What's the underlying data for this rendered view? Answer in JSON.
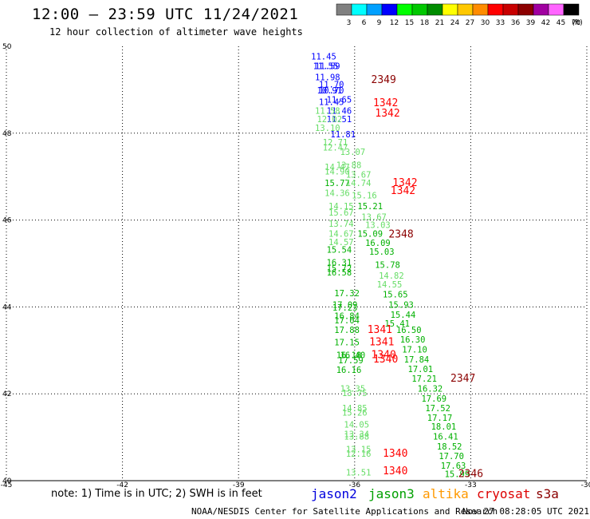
{
  "header": {
    "title": "12:00 – 23:59 UTC 11/24/2021",
    "subtitle": "12 hour collection of altimeter wave heights"
  },
  "legend": {
    "unit": "(ft)",
    "bins": [
      {
        "label": "3",
        "color": "#808080"
      },
      {
        "label": "6",
        "color": "#00ffff"
      },
      {
        "label": "9",
        "color": "#00a0ff"
      },
      {
        "label": "12",
        "color": "#0000ff"
      },
      {
        "label": "15",
        "color": "#00ff00"
      },
      {
        "label": "18",
        "color": "#00c800"
      },
      {
        "label": "21",
        "color": "#008c00"
      },
      {
        "label": "24",
        "color": "#ffff00"
      },
      {
        "label": "27",
        "color": "#ffc800"
      },
      {
        "label": "30",
        "color": "#ff8c00"
      },
      {
        "label": "33",
        "color": "#ff0000"
      },
      {
        "label": "36",
        "color": "#c80000"
      },
      {
        "label": "39",
        "color": "#8c0000"
      },
      {
        "label": "42",
        "color": "#a000a0"
      },
      {
        "label": "45",
        "color": "#ff64ff"
      },
      {
        "label": "70",
        "color": "#000000"
      }
    ]
  },
  "chart_data": {
    "type": "scatter",
    "xlim": [
      -45,
      -30
    ],
    "ylim": [
      40,
      50
    ],
    "x_ticks": [
      "-45",
      "-42",
      "-39",
      "-36",
      "-33",
      "-30"
    ],
    "x_tick_values": [
      -45,
      -42,
      -39,
      -36,
      -33,
      -30
    ],
    "y_ticks": [
      "40",
      "42",
      "44",
      "46",
      "48",
      "50"
    ],
    "y_tick_values": [
      40,
      42,
      44,
      46,
      48,
      50
    ],
    "grid": true,
    "colors": {
      "blue": "#0000ff",
      "green": "#00b000",
      "lightgreen": "#66dd66",
      "red": "#ff0000",
      "darkred": "#8b0000"
    },
    "points": [
      {
        "lon": -36.8,
        "lat": 49.7,
        "label": "11.45",
        "color": "blue"
      },
      {
        "lon": -36.7,
        "lat": 49.48,
        "label": "11.59",
        "color": "blue"
      },
      {
        "lon": -36.75,
        "lat": 49.48,
        "label": "11.55",
        "color": "blue"
      },
      {
        "lon": -36.7,
        "lat": 49.22,
        "label": "11.98",
        "color": "blue"
      },
      {
        "lon": -36.6,
        "lat": 49.05,
        "label": "11.70",
        "color": "blue"
      },
      {
        "lon": -36.65,
        "lat": 48.92,
        "label": "10.91",
        "color": "blue"
      },
      {
        "lon": -36.6,
        "lat": 48.92,
        "label": "10.70",
        "color": "blue"
      },
      {
        "lon": -36.4,
        "lat": 48.7,
        "label": "11.65",
        "color": "blue"
      },
      {
        "lon": -36.6,
        "lat": 48.65,
        "label": "11.45",
        "color": "blue"
      },
      {
        "lon": -36.4,
        "lat": 48.45,
        "label": "11.46",
        "color": "blue"
      },
      {
        "lon": -36.7,
        "lat": 48.45,
        "label": "11.58",
        "color": "lightgreen"
      },
      {
        "lon": -36.4,
        "lat": 48.25,
        "label": "11.51",
        "color": "blue"
      },
      {
        "lon": -36.65,
        "lat": 48.25,
        "label": "12.02",
        "color": "lightgreen"
      },
      {
        "lon": -36.7,
        "lat": 48.05,
        "label": "13.10",
        "color": "lightgreen"
      },
      {
        "lon": -36.3,
        "lat": 47.9,
        "label": "11.81",
        "color": "blue"
      },
      {
        "lon": -36.5,
        "lat": 47.72,
        "label": "12.71",
        "color": "lightgreen"
      },
      {
        "lon": -36.5,
        "lat": 47.6,
        "label": "12.47",
        "color": "lightgreen"
      },
      {
        "lon": -36.05,
        "lat": 47.5,
        "label": "13.07",
        "color": "lightgreen"
      },
      {
        "lon": -36.15,
        "lat": 47.2,
        "label": "13.88",
        "color": "lightgreen"
      },
      {
        "lon": -36.45,
        "lat": 47.15,
        "label": "14.47",
        "color": "lightgreen"
      },
      {
        "lon": -36.45,
        "lat": 47.05,
        "label": "14.90",
        "color": "lightgreen"
      },
      {
        "lon": -35.9,
        "lat": 46.98,
        "label": "13.67",
        "color": "lightgreen"
      },
      {
        "lon": -36.45,
        "lat": 46.78,
        "label": "15.77",
        "color": "green"
      },
      {
        "lon": -35.9,
        "lat": 46.78,
        "label": "14.74",
        "color": "lightgreen"
      },
      {
        "lon": -36.45,
        "lat": 46.55,
        "label": "14.36",
        "color": "lightgreen"
      },
      {
        "lon": -35.75,
        "lat": 46.5,
        "label": "15.16",
        "color": "lightgreen"
      },
      {
        "lon": -36.35,
        "lat": 46.25,
        "label": "14.15",
        "color": "lightgreen"
      },
      {
        "lon": -35.6,
        "lat": 46.25,
        "label": "15.21",
        "color": "green"
      },
      {
        "lon": -36.35,
        "lat": 46.1,
        "label": "15.67",
        "color": "lightgreen"
      },
      {
        "lon": -35.5,
        "lat": 46.0,
        "label": "13.67",
        "color": "lightgreen"
      },
      {
        "lon": -36.35,
        "lat": 45.85,
        "label": "13.74",
        "color": "lightgreen"
      },
      {
        "lon": -35.4,
        "lat": 45.82,
        "label": "13.03",
        "color": "lightgreen"
      },
      {
        "lon": -36.35,
        "lat": 45.62,
        "label": "14.67",
        "color": "lightgreen"
      },
      {
        "lon": -35.6,
        "lat": 45.62,
        "label": "15.09",
        "color": "green"
      },
      {
        "lon": -36.35,
        "lat": 45.42,
        "label": "14.57",
        "color": "lightgreen"
      },
      {
        "lon": -35.4,
        "lat": 45.4,
        "label": "16.09",
        "color": "green"
      },
      {
        "lon": -36.4,
        "lat": 45.25,
        "label": "15.54",
        "color": "green"
      },
      {
        "lon": -35.3,
        "lat": 45.2,
        "label": "15.03",
        "color": "green"
      },
      {
        "lon": -36.4,
        "lat": 44.95,
        "label": "16.31",
        "color": "green"
      },
      {
        "lon": -35.15,
        "lat": 44.9,
        "label": "15.78",
        "color": "green"
      },
      {
        "lon": -36.4,
        "lat": 44.82,
        "label": "15.72",
        "color": "green"
      },
      {
        "lon": -36.4,
        "lat": 44.72,
        "label": "16.58",
        "color": "green"
      },
      {
        "lon": -35.05,
        "lat": 44.65,
        "label": "14.82",
        "color": "lightgreen"
      },
      {
        "lon": -35.1,
        "lat": 44.45,
        "label": "14.55",
        "color": "lightgreen"
      },
      {
        "lon": -36.2,
        "lat": 44.25,
        "label": "17.32",
        "color": "green"
      },
      {
        "lon": -34.95,
        "lat": 44.22,
        "label": "15.65",
        "color": "green"
      },
      {
        "lon": -36.25,
        "lat": 43.98,
        "label": "17.09",
        "color": "green"
      },
      {
        "lon": -36.25,
        "lat": 43.92,
        "label": "17.23",
        "color": "green"
      },
      {
        "lon": -34.8,
        "lat": 43.98,
        "label": "15.93",
        "color": "green"
      },
      {
        "lon": -34.75,
        "lat": 43.75,
        "label": "15.44",
        "color": "green"
      },
      {
        "lon": -36.2,
        "lat": 43.72,
        "label": "16.84",
        "color": "green"
      },
      {
        "lon": -36.2,
        "lat": 43.62,
        "label": "17.04",
        "color": "green"
      },
      {
        "lon": -34.9,
        "lat": 43.55,
        "label": "15.41",
        "color": "green"
      },
      {
        "lon": -36.2,
        "lat": 43.4,
        "label": "17.88",
        "color": "green"
      },
      {
        "lon": -35.35,
        "lat": 43.4,
        "label": "1341",
        "color": "red",
        "large": true
      },
      {
        "lon": -34.6,
        "lat": 43.4,
        "label": "16.50",
        "color": "green"
      },
      {
        "lon": -34.5,
        "lat": 43.18,
        "label": "16.30",
        "color": "green"
      },
      {
        "lon": -36.2,
        "lat": 43.12,
        "label": "17.15",
        "color": "green"
      },
      {
        "lon": -35.3,
        "lat": 43.12,
        "label": "1341",
        "color": "red",
        "large": true
      },
      {
        "lon": -34.45,
        "lat": 42.95,
        "label": "17.10",
        "color": "green"
      },
      {
        "lon": -36.15,
        "lat": 42.82,
        "label": "16.18",
        "color": "green"
      },
      {
        "lon": -36.05,
        "lat": 42.82,
        "label": "16.40",
        "color": "green"
      },
      {
        "lon": -35.25,
        "lat": 42.82,
        "label": "1340",
        "color": "red",
        "large": true
      },
      {
        "lon": -36.1,
        "lat": 42.7,
        "label": "17.59",
        "color": "green"
      },
      {
        "lon": -35.2,
        "lat": 42.72,
        "label": "1340",
        "color": "red",
        "large": true
      },
      {
        "lon": -34.4,
        "lat": 42.72,
        "label": "17.84",
        "color": "green"
      },
      {
        "lon": -34.3,
        "lat": 42.5,
        "label": "17.01",
        "color": "green"
      },
      {
        "lon": -36.15,
        "lat": 42.48,
        "label": "16.16",
        "color": "green"
      },
      {
        "lon": -34.2,
        "lat": 42.28,
        "label": "17.21",
        "color": "green"
      },
      {
        "lon": -33.2,
        "lat": 42.28,
        "label": "2347",
        "color": "darkred",
        "large": true
      },
      {
        "lon": -36.05,
        "lat": 42.05,
        "label": "13.35",
        "color": "lightgreen"
      },
      {
        "lon": -34.05,
        "lat": 42.05,
        "label": "16.32",
        "color": "green"
      },
      {
        "lon": -36.0,
        "lat": 41.95,
        "label": "13.75",
        "color": "lightgreen"
      },
      {
        "lon": -33.95,
        "lat": 41.82,
        "label": "17.69",
        "color": "green"
      },
      {
        "lon": -33.85,
        "lat": 41.6,
        "label": "17.52",
        "color": "green"
      },
      {
        "lon": -36.0,
        "lat": 41.6,
        "label": "14.85",
        "color": "lightgreen"
      },
      {
        "lon": -36.0,
        "lat": 41.5,
        "label": "15.26",
        "color": "lightgreen"
      },
      {
        "lon": -33.8,
        "lat": 41.38,
        "label": "17.17",
        "color": "green"
      },
      {
        "lon": -35.95,
        "lat": 41.22,
        "label": "14.05",
        "color": "lightgreen"
      },
      {
        "lon": -33.7,
        "lat": 41.18,
        "label": "18.01",
        "color": "green"
      },
      {
        "lon": -35.95,
        "lat": 41.0,
        "label": "13.34",
        "color": "lightgreen"
      },
      {
        "lon": -35.95,
        "lat": 40.95,
        "label": "13.88",
        "color": "lightgreen"
      },
      {
        "lon": -33.65,
        "lat": 40.95,
        "label": "16.41",
        "color": "green"
      },
      {
        "lon": -33.55,
        "lat": 40.72,
        "label": "18.52",
        "color": "green"
      },
      {
        "lon": -35.9,
        "lat": 40.65,
        "label": "13.15",
        "color": "lightgreen"
      },
      {
        "lon": -35.9,
        "lat": 40.55,
        "label": "12.16",
        "color": "lightgreen"
      },
      {
        "lon": -34.95,
        "lat": 40.55,
        "label": "1340",
        "color": "red",
        "large": true
      },
      {
        "lon": -33.5,
        "lat": 40.5,
        "label": "17.70",
        "color": "green"
      },
      {
        "lon": -33.45,
        "lat": 40.28,
        "label": "17.63",
        "color": "green"
      },
      {
        "lon": -35.9,
        "lat": 40.12,
        "label": "13.51",
        "color": "lightgreen"
      },
      {
        "lon": -34.95,
        "lat": 40.15,
        "label": "1340",
        "color": "red",
        "large": true
      },
      {
        "lon": -33.35,
        "lat": 40.08,
        "label": "15.99",
        "color": "green"
      },
      {
        "lon": -33.0,
        "lat": 40.08,
        "label": "2346",
        "color": "darkred",
        "large": true
      },
      {
        "lon": -35.2,
        "lat": 48.62,
        "label": "1342",
        "color": "red",
        "large": true
      },
      {
        "lon": -35.15,
        "lat": 48.38,
        "label": "1342",
        "color": "red",
        "large": true
      },
      {
        "lon": -34.7,
        "lat": 46.78,
        "label": "1342",
        "color": "red",
        "large": true
      },
      {
        "lon": -34.75,
        "lat": 46.6,
        "label": "1342",
        "color": "red",
        "large": true
      },
      {
        "lon": -35.25,
        "lat": 49.15,
        "label": "2349",
        "color": "darkred",
        "large": true
      },
      {
        "lon": -34.8,
        "lat": 45.6,
        "label": "2348",
        "color": "darkred",
        "large": true
      }
    ]
  },
  "notes": {
    "text": "note: 1) Time is in UTC; 2) SWH is in feet",
    "satellites": [
      {
        "name": "jason2",
        "color": "#0000dd"
      },
      {
        "name": "jason3",
        "color": "#00a000"
      },
      {
        "name": "altika",
        "color": "#ff9900"
      },
      {
        "name": "cryosat",
        "color": "#dd0000"
      },
      {
        "name": "s3a",
        "color": "#8b0000"
      }
    ]
  },
  "footer": {
    "credit": "NOAA/NESDIS Center for Satellite Applications and Research",
    "timestamp": "Nov 27 08:28:05 UTC 2021"
  }
}
